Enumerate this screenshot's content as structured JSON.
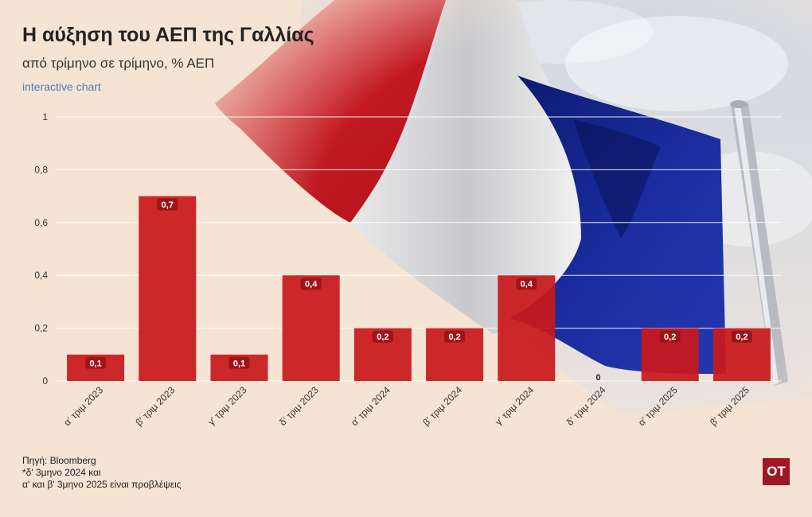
{
  "header": {
    "title": "Η αύξηση του ΑΕΠ της Γαλλίας",
    "subtitle": "από τρίμηνο σε τρίμηνο, % ΑΕΠ",
    "link": "interactive chart"
  },
  "footer": {
    "source": "Πηγή: Bloomberg",
    "note1": "*δ' 3μηνο 2024 και",
    "note2": "α' και β' 3μηνο 2025 είναι προβλέψεις"
  },
  "logo": {
    "text": "OT"
  },
  "colors": {
    "bar": "#c8191c",
    "label_bg": "#9e1418",
    "accent": "#4a7fc1"
  },
  "chart_data": {
    "type": "bar",
    "categories": [
      "α' τριμ 2023",
      "β' τριμ 2023",
      "γ' τριμ 2023",
      "δ' τριμ 2023",
      "α' τριμ 2024",
      "β' τριμ 2024",
      "γ' τριμ 2024",
      "δ' τριμ 2024",
      "α' τριμ 2025",
      "β' τριμ 2025"
    ],
    "values": [
      0.1,
      0.7,
      0.1,
      0.4,
      0.2,
      0.2,
      0.4,
      0,
      0.2,
      0.2
    ],
    "value_labels": [
      "0,1",
      "0,7",
      "0,1",
      "0,4",
      "0,2",
      "0,2",
      "0,4",
      "0",
      "0,2",
      "0,2"
    ],
    "yticks": [
      "0",
      "0,2",
      "0,4",
      "0,6",
      "0,8",
      "1"
    ],
    "ylim": [
      0,
      1
    ],
    "grid": true
  }
}
